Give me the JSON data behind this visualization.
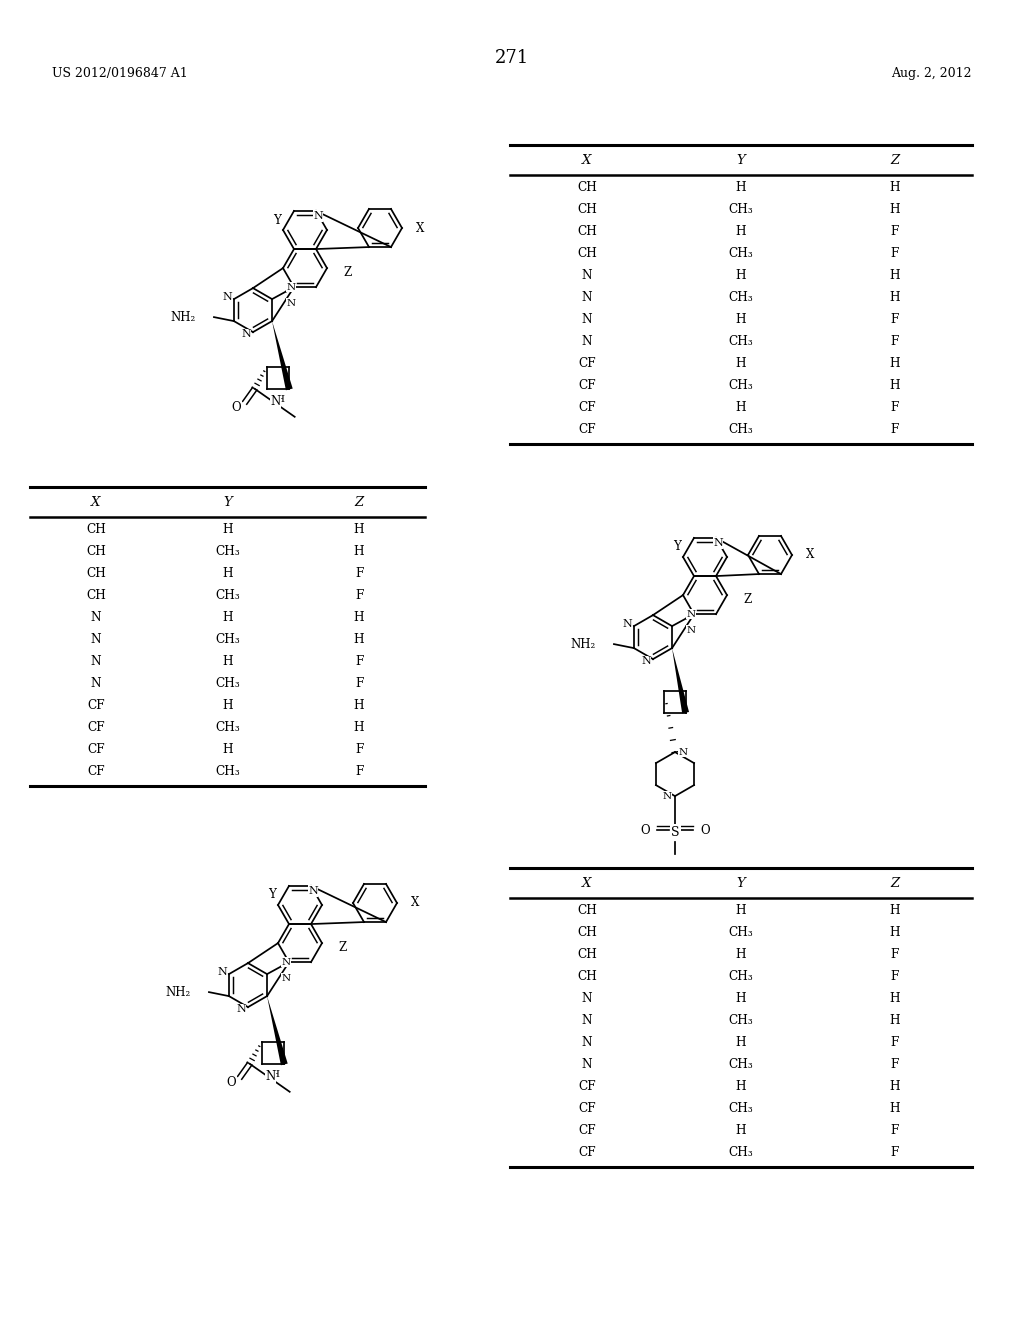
{
  "patent_number": "US 2012/0196847 A1",
  "date": "Aug. 2, 2012",
  "page_number": "271",
  "table_headers": [
    "X",
    "Y",
    "Z"
  ],
  "table_rows": [
    [
      "CH",
      "H",
      "H"
    ],
    [
      "CH",
      "CH₃",
      "H"
    ],
    [
      "CH",
      "H",
      "F"
    ],
    [
      "CH",
      "CH₃",
      "F"
    ],
    [
      "N",
      "H",
      "H"
    ],
    [
      "N",
      "CH₃",
      "H"
    ],
    [
      "N",
      "H",
      "F"
    ],
    [
      "N",
      "CH₃",
      "F"
    ],
    [
      "CF",
      "H",
      "H"
    ],
    [
      "CF",
      "CH₃",
      "H"
    ],
    [
      "CF",
      "H",
      "F"
    ],
    [
      "CF",
      "CH₃",
      "F"
    ]
  ]
}
